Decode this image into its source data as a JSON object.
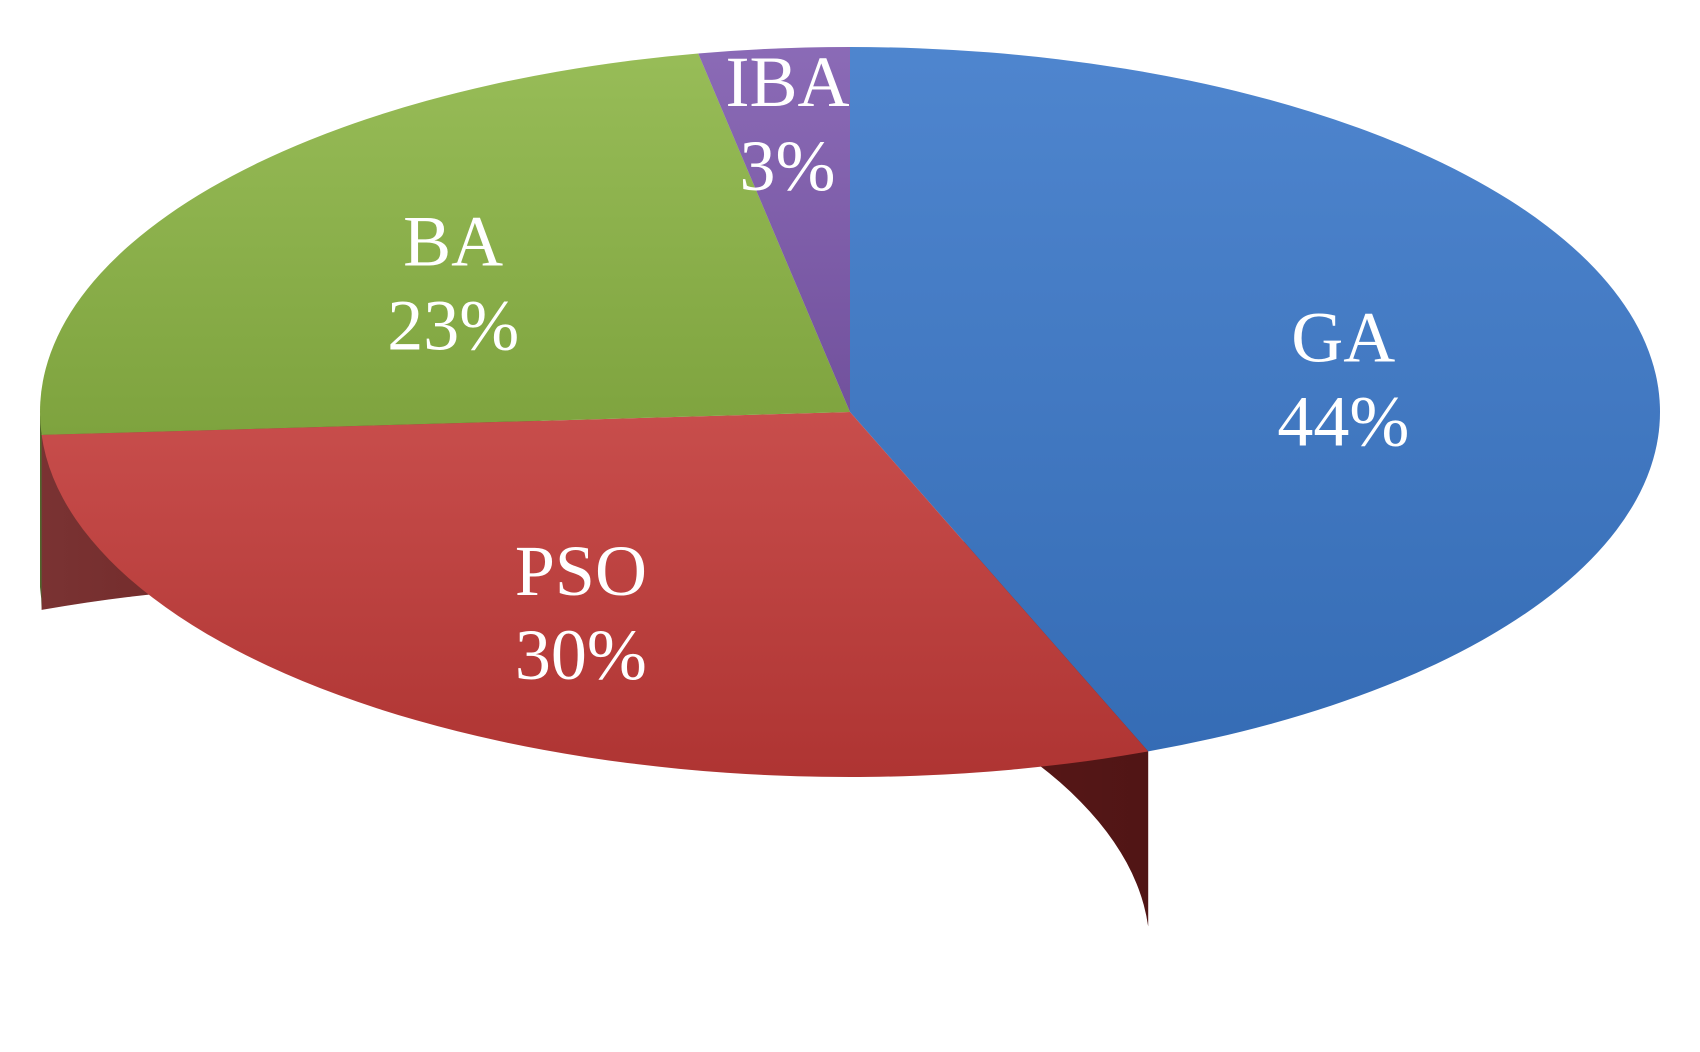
{
  "chart_data": {
    "type": "pie",
    "style": "3d",
    "title": "",
    "start_angle_deg": 90,
    "direction": "clockwise",
    "slices": [
      {
        "name": "GA",
        "value": 44,
        "value_label": "44%",
        "color": "#3B78C9",
        "side_color": "#1A2E52"
      },
      {
        "name": "PSO",
        "value": 30,
        "value_label": "30%",
        "color": "#C23A38",
        "side_color": "#6B1C1C"
      },
      {
        "name": "BA",
        "value": 23,
        "value_label": "23%",
        "color": "#8CB545",
        "side_color": "#4A6322"
      },
      {
        "name": "IBA",
        "value": 3,
        "value_label": "3%",
        "color": "#7E5AAE",
        "side_color": "#3E2B57"
      }
    ]
  }
}
